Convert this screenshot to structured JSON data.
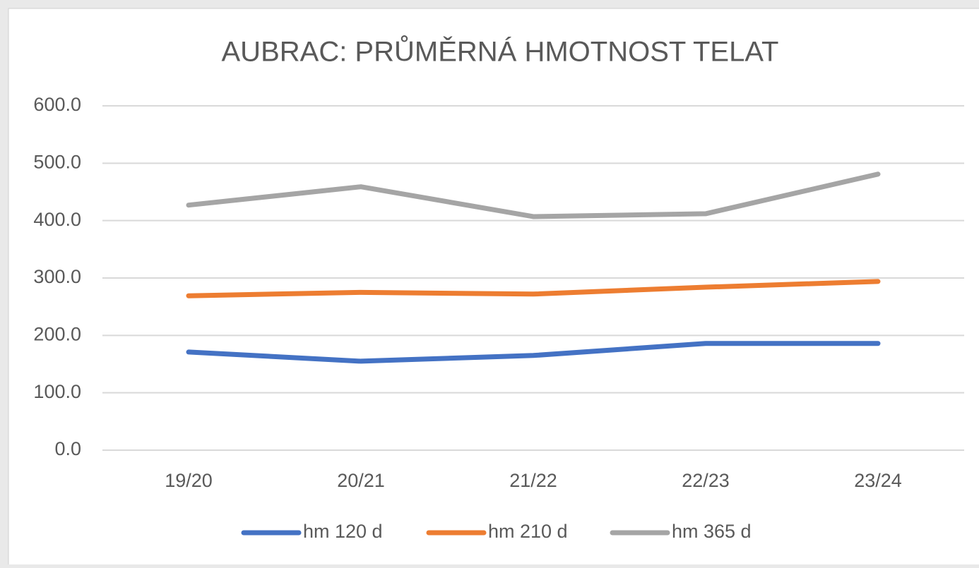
{
  "chart_data": {
    "type": "line",
    "title": "AUBRAC: PRŮMĚRNÁ HMOTNOST TELAT",
    "categories": [
      "19/20",
      "20/21",
      "21/22",
      "22/23",
      "23/24"
    ],
    "series": [
      {
        "name": "hm 120 d",
        "color": "#4472c4",
        "values": [
          171,
          155,
          165,
          186,
          186
        ]
      },
      {
        "name": "hm 210 d",
        "color": "#ed7d31",
        "values": [
          269,
          275,
          272,
          284,
          294
        ]
      },
      {
        "name": "hm 365 d",
        "color": "#a5a5a5",
        "values": [
          427,
          459,
          407,
          412,
          481
        ]
      }
    ],
    "ylim": [
      0,
      600
    ],
    "yticks": [
      {
        "value": 0,
        "label": "0.0"
      },
      {
        "value": 100,
        "label": "100.0"
      },
      {
        "value": 200,
        "label": "200.0"
      },
      {
        "value": 300,
        "label": "300.0"
      },
      {
        "value": 400,
        "label": "400.0"
      },
      {
        "value": 500,
        "label": "500.0"
      },
      {
        "value": 600,
        "label": "600.0"
      }
    ],
    "grid": true,
    "legend": "bottom"
  }
}
